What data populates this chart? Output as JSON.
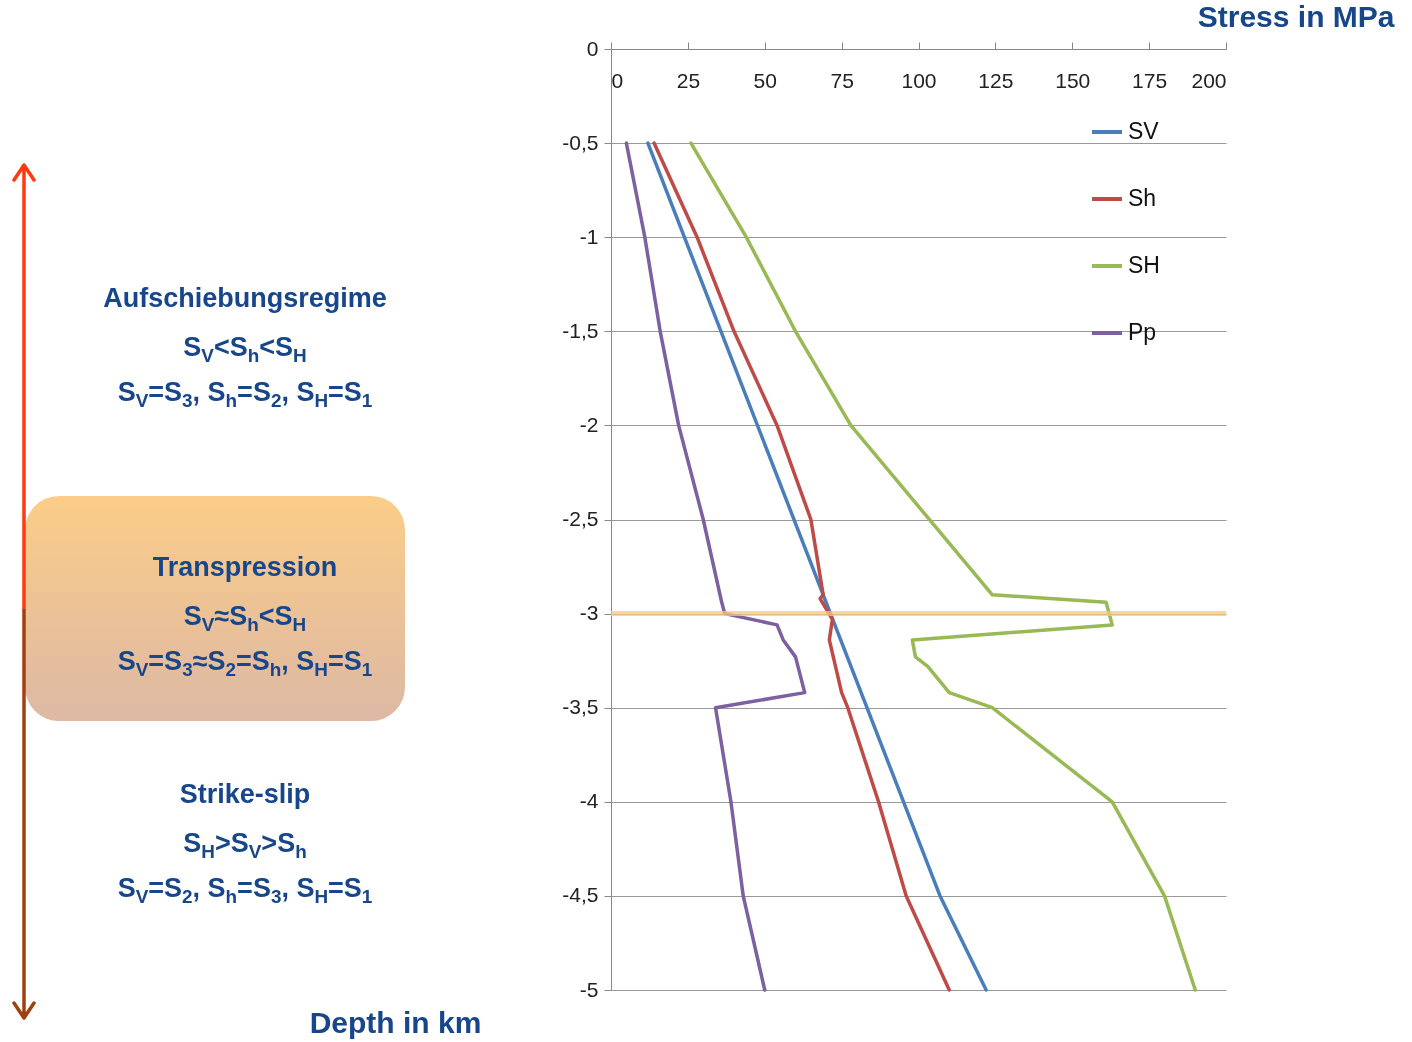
{
  "chart_data": {
    "type": "line",
    "xlabel": "Stress in MPa",
    "ylabel": "Depth in km",
    "xlim": [
      0,
      200
    ],
    "xticks": [
      0,
      25,
      50,
      75,
      100,
      125,
      150,
      175,
      200
    ],
    "ylim": [
      -5,
      0
    ],
    "yticks": [
      0,
      {
        "value": -0.5,
        "label": "-0,5"
      },
      -1,
      {
        "value": -1.5,
        "label": "-1,5"
      },
      -2,
      {
        "value": -2.5,
        "label": "-2,5"
      },
      -3,
      {
        "value": -3.5,
        "label": "-3,5"
      },
      -4,
      {
        "value": -4.5,
        "label": "-4,5"
      },
      -5
    ],
    "grid": "y",
    "legend": "top right",
    "line_style": "solid",
    "series": [
      {
        "name": "SV",
        "color": "#4a7ebb",
        "x": [
          12,
          107,
          122
        ],
        "values": [
          -0.5,
          -4.5,
          -5
        ]
      },
      {
        "name": "Sh",
        "color": "#be4b48",
        "x": [
          14,
          28,
          40,
          54,
          65,
          69,
          68,
          72,
          71,
          75,
          77,
          87,
          96,
          110
        ],
        "values": [
          -0.5,
          -1,
          -1.5,
          -2,
          -2.5,
          -2.9,
          -2.92,
          -3.03,
          -3.14,
          -3.42,
          -3.5,
          -4,
          -4.5,
          -5
        ]
      },
      {
        "name": "SH",
        "color": "#98b954",
        "x": [
          26,
          44,
          60,
          78,
          124,
          161,
          163,
          98,
          99,
          103,
          110,
          124,
          163,
          180,
          190
        ],
        "values": [
          -0.5,
          -1,
          -1.5,
          -2,
          -2.9,
          -2.94,
          -3.06,
          -3.14,
          -3.23,
          -3.28,
          -3.42,
          -3.5,
          -4,
          -4.5,
          -5
        ]
      },
      {
        "name": "Pp",
        "color": "#7d60a0",
        "x": [
          5,
          11,
          16,
          22,
          30,
          36,
          37,
          54,
          56,
          60,
          63,
          34,
          39,
          43,
          50
        ],
        "values": [
          -0.5,
          -1,
          -1.5,
          -2,
          -2.5,
          -2.94,
          -3,
          -3.06,
          -3.14,
          -3.23,
          -3.42,
          -3.5,
          -4,
          -4.5,
          -5
        ]
      }
    ],
    "ref_lines": [
      {
        "axis": "y",
        "value": -3,
        "color": "#fac77a"
      }
    ],
    "annotations": [
      "Aufschiebungsregime",
      "S$_{V}$<S$_{h}$<S$_{H}$",
      "S$_{V}$=S$_{3}$, S$_{h}$=S$_{2}$, S$_{H}$=S$_{1}$",
      "Transpression",
      "S$_{V}$≈S$_{h}$<S$_{H}$",
      "S$_{V}$=S$_{3}$≈S$_{2}$=S$_{h}$, S$_{H}$=S$_{1}$",
      "Strike-slip",
      "S$_{H}$>S$_{V}$>S$_{h}$",
      "S$_{V}$=S$_{2}$, S$_{h}$=S$_{3}$, S$_{H}$=S$_{1}$"
    ]
  }
}
